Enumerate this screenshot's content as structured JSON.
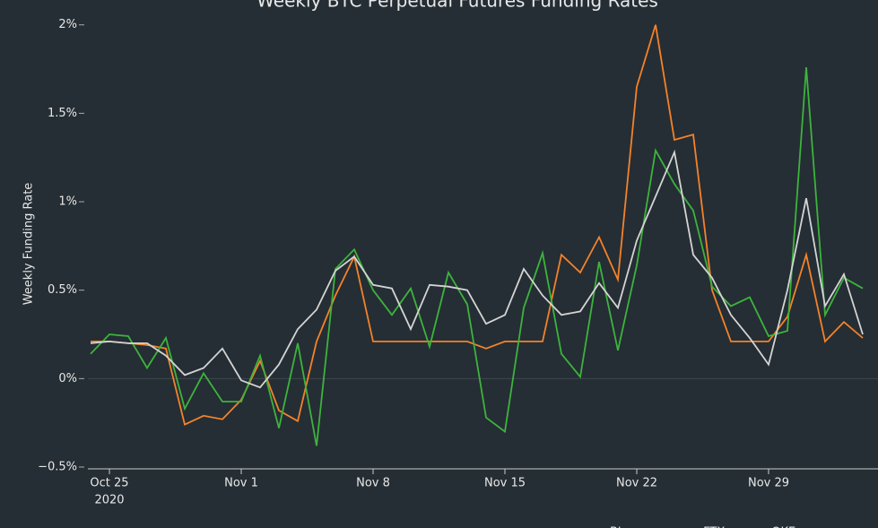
{
  "chart_data": {
    "type": "line",
    "title": "Weekly BTC Perpetual Futures Funding Rates",
    "y_label": "Weekly Funding Rate",
    "x_tick_sublabel": "2020",
    "x": [
      "2020-10-24",
      "2020-10-25",
      "2020-10-26",
      "2020-10-27",
      "2020-10-28",
      "2020-10-29",
      "2020-10-30",
      "2020-10-31",
      "2020-11-01",
      "2020-11-02",
      "2020-11-03",
      "2020-11-04",
      "2020-11-05",
      "2020-11-06",
      "2020-11-07",
      "2020-11-08",
      "2020-11-09",
      "2020-11-10",
      "2020-11-11",
      "2020-11-12",
      "2020-11-13",
      "2020-11-14",
      "2020-11-15",
      "2020-11-16",
      "2020-11-17",
      "2020-11-18",
      "2020-11-19",
      "2020-11-20",
      "2020-11-21",
      "2020-11-22",
      "2020-11-23",
      "2020-11-24",
      "2020-11-25",
      "2020-11-26",
      "2020-11-27",
      "2020-11-28",
      "2020-11-29",
      "2020-11-30",
      "2020-12-01",
      "2020-12-02",
      "2020-12-03",
      "2020-12-04"
    ],
    "series": [
      {
        "name": "Binance",
        "color": "#f5822a",
        "values": [
          0.21,
          0.21,
          0.2,
          0.19,
          0.17,
          -0.26,
          -0.21,
          -0.23,
          -0.12,
          0.1,
          -0.18,
          -0.24,
          0.21,
          0.47,
          0.69,
          0.21,
          0.21,
          0.21,
          0.21,
          0.21,
          0.21,
          0.17,
          0.21,
          0.21,
          0.21,
          0.7,
          0.6,
          0.8,
          0.56,
          1.65,
          2.0,
          1.35,
          1.38,
          0.5,
          0.21,
          0.21,
          0.21,
          0.35,
          0.7,
          0.21,
          0.32,
          0.23
        ]
      },
      {
        "name": "FTX",
        "color": "#3db33d",
        "values": [
          0.14,
          0.25,
          0.24,
          0.06,
          0.23,
          -0.17,
          0.03,
          -0.13,
          -0.13,
          0.13,
          -0.28,
          0.2,
          -0.38,
          0.62,
          0.73,
          0.5,
          0.36,
          0.51,
          0.18,
          0.6,
          0.42,
          -0.22,
          -0.3,
          0.4,
          0.71,
          0.14,
          0.01,
          0.66,
          0.16,
          0.64,
          1.29,
          1.1,
          0.95,
          0.52,
          0.41,
          0.46,
          0.24,
          0.27,
          1.76,
          0.36,
          0.57,
          0.51
        ]
      },
      {
        "name": "OKEx",
        "color": "#d4d4d4",
        "values": [
          0.2,
          0.21,
          0.2,
          0.2,
          0.13,
          0.02,
          0.06,
          0.17,
          -0.01,
          -0.05,
          0.08,
          0.28,
          0.39,
          0.61,
          0.69,
          0.53,
          0.51,
          0.28,
          0.53,
          0.52,
          0.5,
          0.31,
          0.36,
          0.62,
          0.47,
          0.36,
          0.38,
          0.54,
          0.4,
          0.78,
          1.03,
          1.28,
          0.7,
          0.57,
          0.36,
          0.23,
          0.08,
          0.5,
          1.02,
          0.41,
          0.59,
          0.25
        ]
      }
    ],
    "xlim": [
      "2020-10-24",
      "2020-12-04"
    ],
    "xticks": [
      {
        "value": "2020-10-25",
        "label": "Oct 25"
      },
      {
        "value": "2020-11-01",
        "label": "Nov 1"
      },
      {
        "value": "2020-11-08",
        "label": "Nov 8"
      },
      {
        "value": "2020-11-15",
        "label": "Nov 15"
      },
      {
        "value": "2020-11-22",
        "label": "Nov 22"
      },
      {
        "value": "2020-11-29",
        "label": "Nov 29"
      }
    ],
    "ylim": [
      -0.5,
      2.1
    ],
    "yticks": [
      {
        "value": -0.5,
        "label": "−0.5%"
      },
      {
        "value": 0,
        "label": "0%"
      },
      {
        "value": 0.5,
        "label": "0.5%"
      },
      {
        "value": 1,
        "label": "1%"
      },
      {
        "value": 1.5,
        "label": "1.5%"
      },
      {
        "value": 2,
        "label": "2%"
      }
    ],
    "grid": true,
    "legend": "bottom-right"
  }
}
